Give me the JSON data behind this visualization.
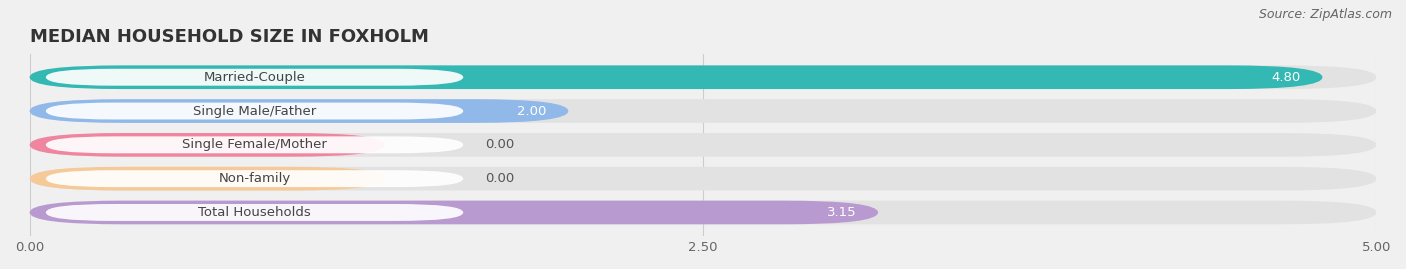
{
  "title": "MEDIAN HOUSEHOLD SIZE IN FOXHOLM",
  "source": "Source: ZipAtlas.com",
  "categories": [
    "Married-Couple",
    "Single Male/Father",
    "Single Female/Mother",
    "Non-family",
    "Total Households"
  ],
  "values": [
    4.8,
    2.0,
    0.0,
    0.0,
    3.15
  ],
  "bar_colors": [
    "#33b8b4",
    "#90b8e8",
    "#f085a0",
    "#f5c998",
    "#b89ad0"
  ],
  "xlim": [
    0,
    5.0
  ],
  "xticks": [
    0.0,
    2.5,
    5.0
  ],
  "xtick_labels": [
    "0.00",
    "2.50",
    "5.00"
  ],
  "background_color": "#f0f0f0",
  "bar_background": "#e2e2e2",
  "title_fontsize": 13,
  "label_fontsize": 9.5,
  "value_fontsize": 9.5,
  "source_fontsize": 9
}
